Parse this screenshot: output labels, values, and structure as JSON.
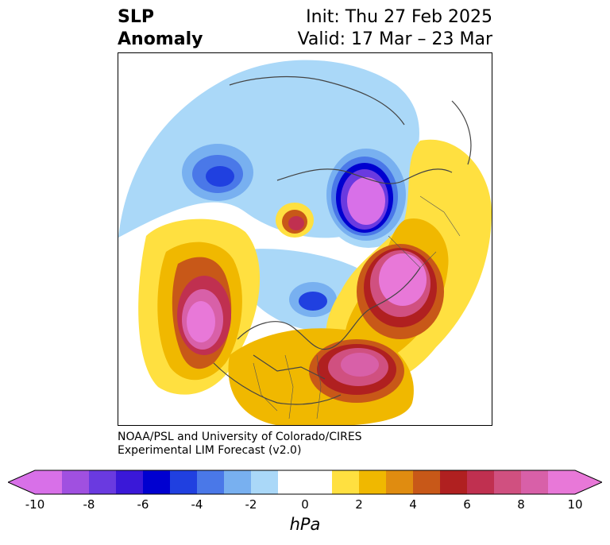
{
  "title": {
    "left_line1": "SLP",
    "left_line2": "Anomaly",
    "init": "Init: Thu 27 Feb 2025",
    "valid": "Valid: 17 Mar – 23 Mar"
  },
  "credit": {
    "line1": "NOAA/PSL and University of Colorado/CIRES",
    "line2": "Experimental LIM Forecast (v2.0)"
  },
  "colorbar": {
    "unit": "hPa",
    "min": -10,
    "max": 10,
    "tick_labels": [
      "-10",
      "-8",
      "-6",
      "-4",
      "-2",
      "0",
      "2",
      "4",
      "6",
      "8",
      "10"
    ],
    "colors": [
      "#d870e8",
      "#a050e0",
      "#6a3ae0",
      "#3a18d8",
      "#0000d0",
      "#2040e0",
      "#4a78e8",
      "#78b0f0",
      "#aad8f8",
      "#ffffff",
      "#ffffff",
      "#ffe040",
      "#f0b800",
      "#e08c10",
      "#c85818",
      "#b02020",
      "#c03050",
      "#d05080",
      "#d860a8",
      "#e878d8"
    ],
    "over_color": "#e878d8",
    "under_color": "#d870e8"
  },
  "anomalies": [
    {
      "name": "alaska-low",
      "value": -7
    },
    {
      "name": "siberia-low",
      "value": -10
    },
    {
      "name": "hudson-low",
      "value": -6
    },
    {
      "name": "pacific-high",
      "value": 10
    },
    {
      "name": "atlantic-high",
      "value": 10
    },
    {
      "name": "europe-high",
      "value": 10
    },
    {
      "name": "greenland-high",
      "value": 6
    }
  ]
}
